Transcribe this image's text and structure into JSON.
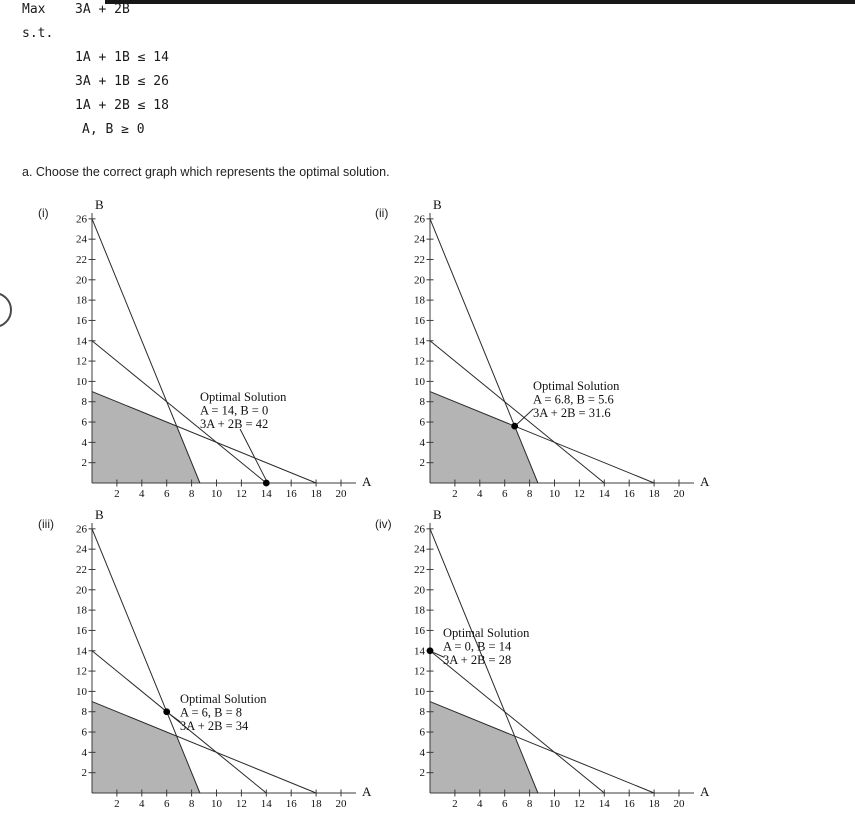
{
  "style": {
    "topbar_color": "#171717",
    "region_fill": "#b4b4b4",
    "axis_color": "#3c3c3c",
    "line_color": "#2a2a2a",
    "text_color": "#111111",
    "point_color": "#000000"
  },
  "problem": {
    "objective_label": "Max",
    "objective": "3A + 2B",
    "st_label": "s.t.",
    "constraints": [
      "1A + 1B ≤ 14",
      "3A + 1B ≤ 26",
      "1A + 2B ≤ 18",
      "A, B ≥ 0"
    ]
  },
  "question": "a. Choose the correct graph which represents the optimal solution.",
  "chart_data": [
    {
      "id": "i",
      "label": "(i)",
      "type": "line",
      "xlabel": "A",
      "ylabel": "B",
      "xlim": [
        0,
        21
      ],
      "ylim": [
        0,
        27
      ],
      "x_ticks": [
        2,
        4,
        6,
        8,
        10,
        12,
        14,
        16,
        18,
        20
      ],
      "y_ticks": [
        2,
        4,
        6,
        8,
        10,
        12,
        14,
        16,
        18,
        20,
        22,
        24,
        26
      ],
      "constraint_lines": [
        {
          "name": "1A + 1B = 14",
          "points": [
            [
              0,
              14
            ],
            [
              14,
              0
            ]
          ]
        },
        {
          "name": "3A + 1B = 26",
          "points": [
            [
              0,
              26
            ],
            [
              8.667,
              0
            ]
          ]
        },
        {
          "name": "1A + 2B = 18",
          "points": [
            [
              0,
              9
            ],
            [
              18,
              0
            ]
          ]
        }
      ],
      "feasible_region": [
        [
          0,
          0
        ],
        [
          8.667,
          0
        ],
        [
          6.8,
          5.6
        ],
        [
          0,
          9
        ]
      ],
      "optimal_point": [
        14,
        0
      ],
      "annotation": {
        "lines": [
          "Optimal Solution",
          "A = 14, B = 0",
          "3A + 2B = 42"
        ],
        "x": 8.67,
        "y": 8.05
      },
      "leader": [
        [
          11.9,
          5.3
        ],
        [
          14,
          0.25
        ]
      ]
    },
    {
      "id": "ii",
      "label": "(ii)",
      "type": "line",
      "xlabel": "A",
      "ylabel": "B",
      "xlim": [
        0,
        21
      ],
      "ylim": [
        0,
        27
      ],
      "x_ticks": [
        2,
        4,
        6,
        8,
        10,
        12,
        14,
        16,
        18,
        20
      ],
      "y_ticks": [
        2,
        4,
        6,
        8,
        10,
        12,
        14,
        16,
        18,
        20,
        22,
        24,
        26
      ],
      "constraint_lines": [
        {
          "name": "1A + 1B = 14",
          "points": [
            [
              0,
              14
            ],
            [
              14,
              0
            ]
          ]
        },
        {
          "name": "3A + 1B = 26",
          "points": [
            [
              0,
              26
            ],
            [
              8.667,
              0
            ]
          ]
        },
        {
          "name": "1A + 2B = 18",
          "points": [
            [
              0,
              9
            ],
            [
              18,
              0
            ]
          ]
        }
      ],
      "feasible_region": [
        [
          0,
          0
        ],
        [
          8.667,
          0
        ],
        [
          6.8,
          5.6
        ],
        [
          0,
          9
        ]
      ],
      "optimal_point": [
        6.8,
        5.6
      ],
      "annotation": {
        "lines": [
          "Optimal Solution",
          "A = 6.8, B = 5.6",
          "3A + 2B = 31.6"
        ],
        "x": 8.27,
        "y": 9.15
      },
      "leader": [
        [
          8.3,
          7.3
        ],
        [
          6.95,
          5.75
        ]
      ]
    },
    {
      "id": "iii",
      "label": "(iii)",
      "type": "line",
      "xlabel": "A",
      "ylabel": "B",
      "xlim": [
        0,
        21
      ],
      "ylim": [
        0,
        27
      ],
      "x_ticks": [
        2,
        4,
        6,
        8,
        10,
        12,
        14,
        16,
        18,
        20
      ],
      "y_ticks": [
        2,
        4,
        6,
        8,
        10,
        12,
        14,
        16,
        18,
        20,
        22,
        24,
        26
      ],
      "constraint_lines": [
        {
          "name": "1A + 1B = 14",
          "points": [
            [
              0,
              14
            ],
            [
              14,
              0
            ]
          ]
        },
        {
          "name": "3A + 1B = 26",
          "points": [
            [
              0,
              26
            ],
            [
              8.667,
              0
            ]
          ]
        },
        {
          "name": "1A + 2B = 18",
          "points": [
            [
              0,
              9
            ],
            [
              18,
              0
            ]
          ]
        }
      ],
      "feasible_region": [
        [
          0,
          0
        ],
        [
          8.667,
          0
        ],
        [
          6.8,
          5.6
        ],
        [
          0,
          9
        ]
      ],
      "optimal_point": [
        6,
        8
      ],
      "annotation": {
        "lines": [
          "Optimal Solution",
          "A = 6, B = 8",
          "3A + 2B = 34"
        ],
        "x": 7.07,
        "y": 8.86
      },
      "leader": [
        [
          7.1,
          7.0
        ],
        [
          6.15,
          7.85
        ]
      ]
    },
    {
      "id": "iv",
      "label": "(iv)",
      "type": "line",
      "xlabel": "A",
      "ylabel": "B",
      "xlim": [
        0,
        21
      ],
      "ylim": [
        0,
        27
      ],
      "x_ticks": [
        2,
        4,
        6,
        8,
        10,
        12,
        14,
        16,
        18,
        20
      ],
      "y_ticks": [
        2,
        4,
        6,
        8,
        10,
        12,
        14,
        16,
        18,
        20,
        22,
        24,
        26
      ],
      "constraint_lines": [
        {
          "name": "1A + 1B = 14",
          "points": [
            [
              0,
              14
            ],
            [
              14,
              0
            ]
          ]
        },
        {
          "name": "3A + 1B = 26",
          "points": [
            [
              0,
              26
            ],
            [
              8.667,
              0
            ]
          ]
        },
        {
          "name": "1A + 2B = 18",
          "points": [
            [
              0,
              9
            ],
            [
              18,
              0
            ]
          ]
        }
      ],
      "feasible_region": [
        [
          0,
          0
        ],
        [
          8.667,
          0
        ],
        [
          6.8,
          5.6
        ],
        [
          0,
          9
        ]
      ],
      "optimal_point": [
        0,
        14
      ],
      "annotation": {
        "lines": [
          "Optimal Solution",
          "A = 0, B = 14",
          "3A + 2B = 28"
        ],
        "x": 1.04,
        "y": 15.35
      },
      "leader": [
        [
          1.15,
          13.35
        ],
        [
          0.25,
          13.85
        ]
      ]
    }
  ]
}
